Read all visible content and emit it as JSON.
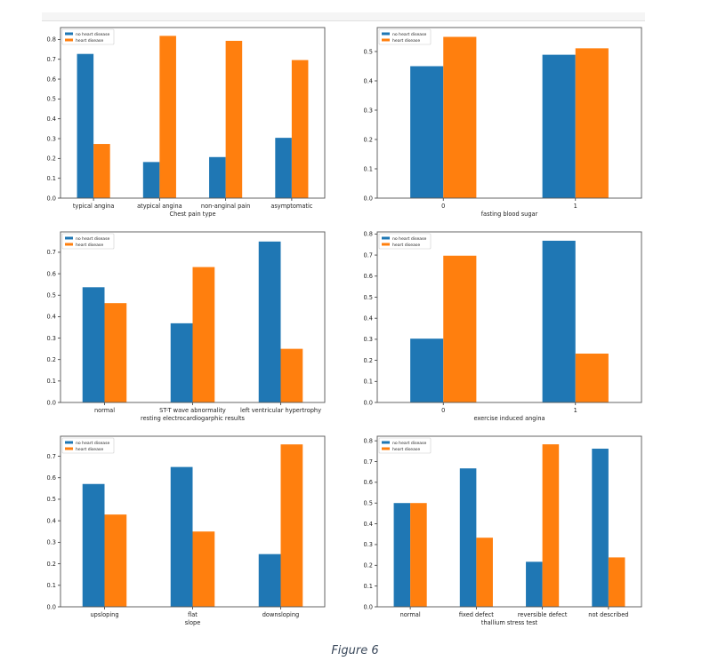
{
  "caption": "Figure 6",
  "colors": {
    "no_heart_disease": "#1f77b4",
    "heart_disease": "#ff7f0e"
  },
  "chart_data": [
    {
      "type": "bar",
      "title": "",
      "xlabel": "Chest pain type",
      "ylabel": "",
      "categories": [
        "typical angina",
        "atypical angina",
        "non-anginal pain",
        "asymptomatic"
      ],
      "series": [
        {
          "name": "no heart disease",
          "values": [
            0.727,
            0.182,
            0.207,
            0.304
          ]
        },
        {
          "name": "heart disease",
          "values": [
            0.273,
            0.818,
            0.793,
            0.696
          ]
        }
      ],
      "ylim": [
        0,
        0.86
      ],
      "yticks": [
        "0.0",
        "0.1",
        "0.2",
        "0.3",
        "0.4",
        "0.5",
        "0.6",
        "0.7",
        "0.8"
      ],
      "legend": "top-left",
      "grid": false
    },
    {
      "type": "bar",
      "title": "",
      "xlabel": "fasting blood sugar",
      "ylabel": "",
      "categories": [
        "0",
        "1"
      ],
      "series": [
        {
          "name": "no heart disease",
          "values": [
            0.45,
            0.489
          ]
        },
        {
          "name": "heart disease",
          "values": [
            0.55,
            0.511
          ]
        }
      ],
      "ylim": [
        0,
        0.5818
      ],
      "yticks": [
        "0.0",
        "0.1",
        "0.2",
        "0.3",
        "0.4",
        "0.5"
      ],
      "legend": "top-left",
      "grid": false
    },
    {
      "type": "bar",
      "title": "",
      "xlabel": "resting electrocardiogarphic results",
      "ylabel": "",
      "categories": [
        "normal",
        "ST-T wave abnormality",
        "left ventricular hypertrophy"
      ],
      "series": [
        {
          "name": "no heart disease",
          "values": [
            0.537,
            0.369,
            0.75
          ]
        },
        {
          "name": "heart disease",
          "values": [
            0.463,
            0.631,
            0.25
          ]
        }
      ],
      "ylim": [
        0,
        0.795
      ],
      "yticks": [
        "0.0",
        "0.1",
        "0.2",
        "0.3",
        "0.4",
        "0.5",
        "0.6",
        "0.7"
      ],
      "legend": "top-left",
      "grid": false
    },
    {
      "type": "bar",
      "title": "",
      "xlabel": "exercise induced angina",
      "ylabel": "",
      "categories": [
        "0",
        "1"
      ],
      "series": [
        {
          "name": "no heart disease",
          "values": [
            0.303,
            0.768
          ]
        },
        {
          "name": "heart disease",
          "values": [
            0.697,
            0.232
          ]
        }
      ],
      "ylim": [
        0,
        0.81
      ],
      "yticks": [
        "0.0",
        "0.1",
        "0.2",
        "0.3",
        "0.4",
        "0.5",
        "0.6",
        "0.7",
        "0.8"
      ],
      "legend": "top-left",
      "grid": false
    },
    {
      "type": "bar",
      "title": "",
      "xlabel": "slope",
      "ylabel": "",
      "categories": [
        "upsloping",
        "flat",
        "downsloping"
      ],
      "series": [
        {
          "name": "no heart disease",
          "values": [
            0.571,
            0.65,
            0.245
          ]
        },
        {
          "name": "heart disease",
          "values": [
            0.429,
            0.35,
            0.755
          ]
        }
      ],
      "ylim": [
        0,
        0.793
      ],
      "yticks": [
        "0.0",
        "0.1",
        "0.2",
        "0.3",
        "0.4",
        "0.5",
        "0.6",
        "0.7"
      ],
      "legend": "top-left",
      "grid": false
    },
    {
      "type": "bar",
      "title": "",
      "xlabel": "thallium stress test",
      "ylabel": "",
      "categories": [
        "normal",
        "fixed defect",
        "reversible defect",
        "not described"
      ],
      "series": [
        {
          "name": "no heart disease",
          "values": [
            0.5,
            0.667,
            0.217,
            0.762
          ]
        },
        {
          "name": "heart disease",
          "values": [
            0.5,
            0.333,
            0.783,
            0.238
          ]
        }
      ],
      "ylim": [
        0,
        0.822
      ],
      "yticks": [
        "0.0",
        "0.1",
        "0.2",
        "0.3",
        "0.4",
        "0.5",
        "0.6",
        "0.7",
        "0.8"
      ],
      "legend": "top-left",
      "grid": false
    }
  ]
}
